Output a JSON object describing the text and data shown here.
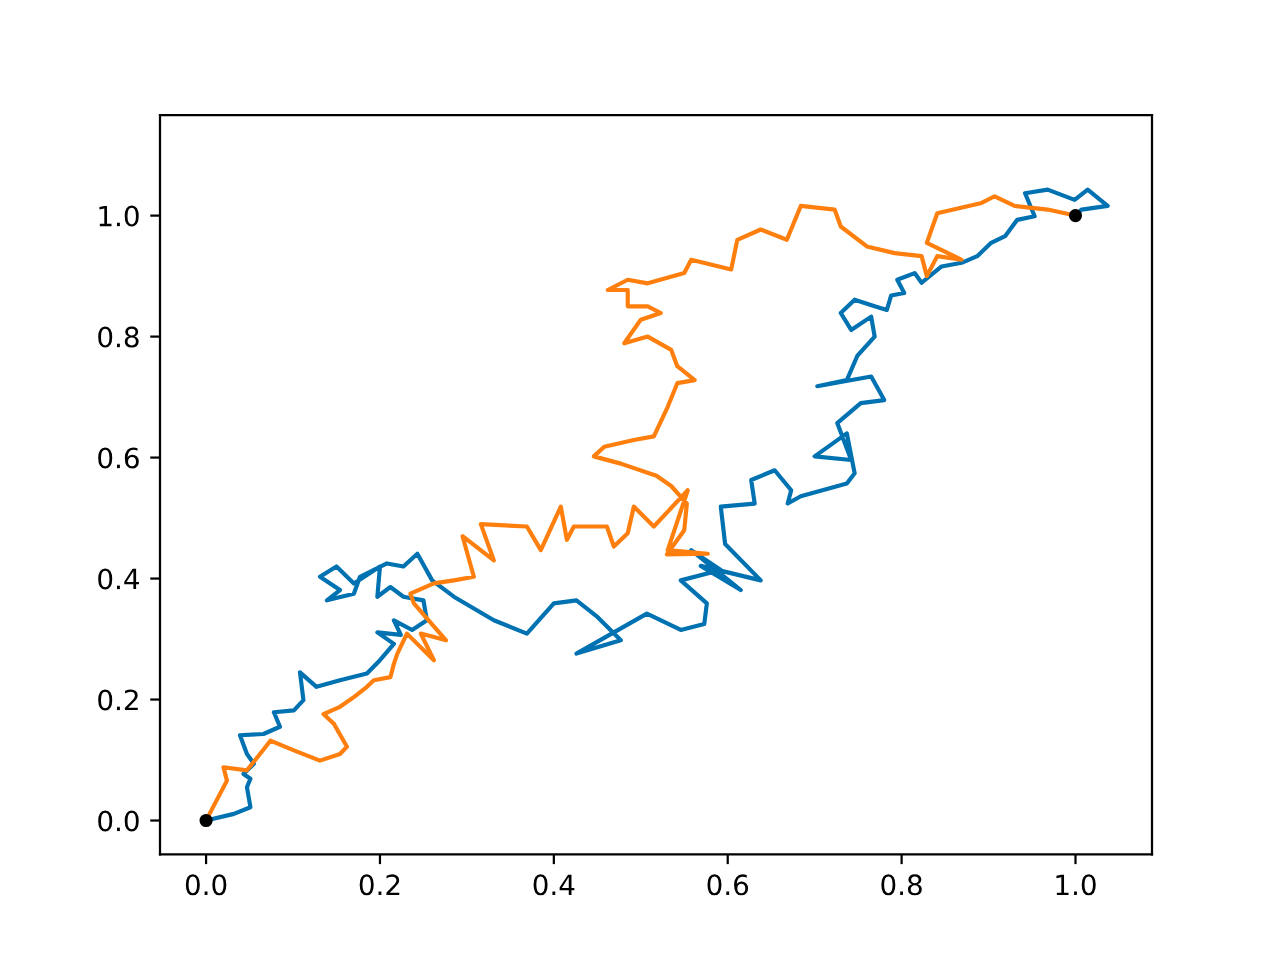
{
  "chart_data": {
    "type": "line",
    "xlim": [
      -0.053,
      1.088
    ],
    "ylim": [
      -0.056,
      1.166
    ],
    "xticks": [
      {
        "value": 0,
        "label": "0.0"
      },
      {
        "value": 0.2,
        "label": "0.2"
      },
      {
        "value": 0.4,
        "label": "0.4"
      },
      {
        "value": 0.6,
        "label": "0.6"
      },
      {
        "value": 0.8,
        "label": "0.8"
      },
      {
        "value": 1,
        "label": "1.0"
      }
    ],
    "yticks": [
      {
        "value": 0,
        "label": "0.0"
      },
      {
        "value": 0.2,
        "label": "0.2"
      },
      {
        "value": 0.4,
        "label": "0.4"
      },
      {
        "value": 0.6,
        "label": "0.6"
      },
      {
        "value": 0.8,
        "label": "0.8"
      },
      {
        "value": 1,
        "label": "1.0"
      }
    ],
    "grid": false,
    "series": [
      {
        "color": "#0072b2",
        "x": [
          0,
          0.032,
          0.051,
          0.047,
          0.051,
          0.043,
          0.055,
          0.047,
          0.039,
          0.066,
          0.085,
          0.078,
          0.101,
          0.112,
          0.108,
          0.127,
          0.154,
          0.185,
          0.2,
          0.216,
          0.197,
          0.224,
          0.216,
          0.237,
          0.254,
          0.25,
          0.227,
          0.212,
          0.197,
          0.2,
          0.17,
          0.15,
          0.131,
          0.154,
          0.139,
          0.17,
          0.177,
          0.208,
          0.227,
          0.243,
          0.26,
          0.285,
          0.331,
          0.369,
          0.4,
          0.426,
          0.449,
          0.477,
          0.426,
          0.507,
          0.546,
          0.573,
          0.576,
          0.546,
          0.592,
          0.558,
          0.615,
          0.569,
          0.638,
          0.597,
          0.592,
          0.631,
          0.627,
          0.654,
          0.673,
          0.669,
          0.684,
          0.737,
          0.746,
          0.737,
          0.7,
          0.742,
          0.726,
          0.753,
          0.78,
          0.765,
          0.703,
          0.737,
          0.749,
          0.769,
          0.765,
          0.742,
          0.73,
          0.746,
          0.769,
          0.783,
          0.788,
          0.803,
          0.795,
          0.815,
          0.823,
          0.846,
          0.869,
          0.887,
          0.903,
          0.919,
          0.933,
          0.953,
          0.942,
          0.968,
          0.999,
          1.014,
          1.037,
          1.007,
          1
        ],
        "values": [
          0,
          0.011,
          0.022,
          0.055,
          0.069,
          0.077,
          0.094,
          0.11,
          0.141,
          0.143,
          0.155,
          0.179,
          0.182,
          0.199,
          0.245,
          0.221,
          0.232,
          0.243,
          0.265,
          0.292,
          0.311,
          0.307,
          0.331,
          0.315,
          0.331,
          0.364,
          0.37,
          0.386,
          0.37,
          0.42,
          0.392,
          0.42,
          0.403,
          0.381,
          0.364,
          0.375,
          0.403,
          0.425,
          0.42,
          0.441,
          0.397,
          0.37,
          0.331,
          0.309,
          0.359,
          0.364,
          0.338,
          0.298,
          0.276,
          0.342,
          0.315,
          0.325,
          0.359,
          0.397,
          0.414,
          0.447,
          0.381,
          0.421,
          0.397,
          0.457,
          0.519,
          0.524,
          0.563,
          0.579,
          0.546,
          0.524,
          0.536,
          0.557,
          0.574,
          0.64,
          0.602,
          0.596,
          0.657,
          0.69,
          0.695,
          0.734,
          0.718,
          0.728,
          0.768,
          0.8,
          0.833,
          0.811,
          0.839,
          0.861,
          0.85,
          0.844,
          0.868,
          0.872,
          0.894,
          0.905,
          0.889,
          0.916,
          0.922,
          0.933,
          0.955,
          0.966,
          0.993,
          0.999,
          1.037,
          1.043,
          1.026,
          1.043,
          1.016,
          1.01,
          1
        ]
      },
      {
        "color": "#ff7f0e",
        "x": [
          0,
          0.024,
          0.02,
          0.047,
          0.062,
          0.074,
          0.101,
          0.131,
          0.154,
          0.162,
          0.147,
          0.135,
          0.154,
          0.17,
          0.185,
          0.193,
          0.212,
          0.216,
          0.22,
          0.231,
          0.262,
          0.247,
          0.276,
          0.239,
          0.235,
          0.262,
          0.285,
          0.308,
          0.295,
          0.331,
          0.316,
          0.369,
          0.385,
          0.408,
          0.415,
          0.423,
          0.461,
          0.469,
          0.485,
          0.492,
          0.515,
          0.554,
          0.531,
          0.577,
          0.53,
          0.55,
          0.553,
          0.535,
          0.518,
          0.477,
          0.446,
          0.458,
          0.492,
          0.515,
          0.531,
          0.542,
          0.562,
          0.542,
          0.535,
          0.508,
          0.481,
          0.5,
          0.523,
          0.508,
          0.485,
          0.485,
          0.462,
          0.485,
          0.508,
          0.55,
          0.558,
          0.604,
          0.611,
          0.638,
          0.668,
          0.684,
          0.723,
          0.73,
          0.76,
          0.792,
          0.823,
          0.829,
          0.841,
          0.869,
          0.829,
          0.841,
          0.892,
          0.907,
          0.93,
          0.968,
          1
        ],
        "values": [
          0,
          0.066,
          0.088,
          0.083,
          0.11,
          0.132,
          0.116,
          0.099,
          0.11,
          0.122,
          0.16,
          0.176,
          0.188,
          0.204,
          0.221,
          0.232,
          0.237,
          0.259,
          0.276,
          0.309,
          0.265,
          0.309,
          0.298,
          0.359,
          0.375,
          0.392,
          0.397,
          0.403,
          0.47,
          0.43,
          0.49,
          0.486,
          0.447,
          0.519,
          0.464,
          0.486,
          0.486,
          0.453,
          0.475,
          0.519,
          0.486,
          0.546,
          0.447,
          0.441,
          0.44,
          0.48,
          0.524,
          0.553,
          0.57,
          0.59,
          0.602,
          0.618,
          0.629,
          0.635,
          0.684,
          0.723,
          0.728,
          0.751,
          0.778,
          0.8,
          0.789,
          0.828,
          0.839,
          0.85,
          0.85,
          0.877,
          0.877,
          0.894,
          0.888,
          0.905,
          0.927,
          0.911,
          0.96,
          0.977,
          0.96,
          1.016,
          1.01,
          0.982,
          0.949,
          0.938,
          0.933,
          0.9,
          0.933,
          0.927,
          0.955,
          1.004,
          1.021,
          1.032,
          1.016,
          1.01,
          1
        ]
      },
      {
        "type": "scatter",
        "color": "#000000",
        "marker": "circle",
        "x": [
          0,
          1
        ],
        "values": [
          0,
          1
        ]
      }
    ]
  }
}
